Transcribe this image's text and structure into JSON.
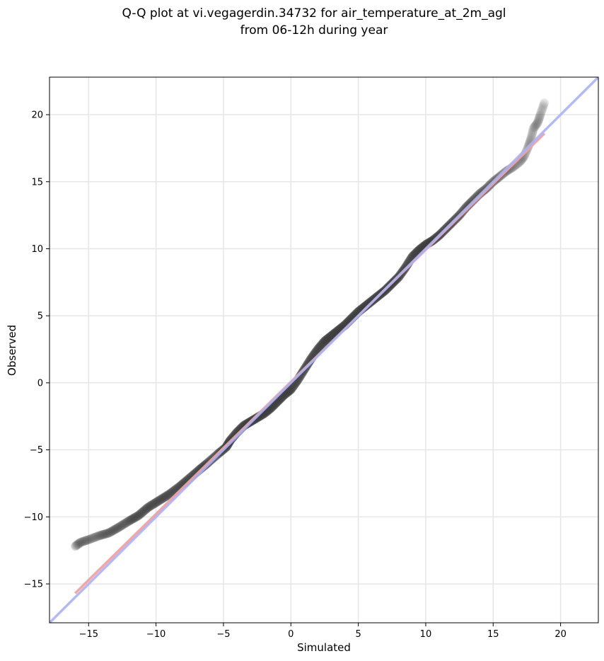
{
  "chart_data": {
    "type": "scatter",
    "title": [
      "Q-Q plot at vi.vegagerdin.34732 for air_temperature_at_2m_agl",
      "from 06-12h during year"
    ],
    "xlabel": "Simulated",
    "ylabel": "Observed",
    "xlim": [
      -17.9,
      22.8
    ],
    "ylim": [
      -17.9,
      22.8
    ],
    "xticks": [
      -15,
      -10,
      -5,
      0,
      5,
      10,
      15,
      20
    ],
    "yticks": [
      -15,
      -10,
      -5,
      0,
      5,
      10,
      15,
      20
    ],
    "xtick_labels": [
      "−15",
      "−10",
      "−5",
      "0",
      "5",
      "10",
      "15",
      "20"
    ],
    "ytick_labels": [
      "−15",
      "−10",
      "−5",
      "0",
      "5",
      "10",
      "15",
      "20"
    ],
    "grid": true,
    "quantile_curve": [
      [
        -16.0,
        -12.2
      ],
      [
        -15.6,
        -11.9
      ],
      [
        -15.0,
        -11.7
      ],
      [
        -14.2,
        -11.4
      ],
      [
        -13.5,
        -11.2
      ],
      [
        -12.8,
        -10.8
      ],
      [
        -12.0,
        -10.3
      ],
      [
        -11.3,
        -9.9
      ],
      [
        -10.6,
        -9.3
      ],
      [
        -9.8,
        -8.8
      ],
      [
        -9.0,
        -8.3
      ],
      [
        -8.2,
        -7.7
      ],
      [
        -7.5,
        -7.1
      ],
      [
        -6.8,
        -6.5
      ],
      [
        -6.2,
        -6.0
      ],
      [
        -5.4,
        -5.3
      ],
      [
        -4.8,
        -4.8
      ],
      [
        -4.5,
        -4.3
      ],
      [
        -4.0,
        -3.7
      ],
      [
        -3.5,
        -3.2
      ],
      [
        -3.0,
        -2.9
      ],
      [
        -2.5,
        -2.6
      ],
      [
        -2.0,
        -2.3
      ],
      [
        -1.5,
        -1.9
      ],
      [
        -1.0,
        -1.4
      ],
      [
        -0.5,
        -0.9
      ],
      [
        0.0,
        -0.5
      ],
      [
        0.5,
        0.2
      ],
      [
        1.0,
        1.0
      ],
      [
        1.5,
        1.8
      ],
      [
        2.0,
        2.5
      ],
      [
        2.5,
        3.1
      ],
      [
        3.0,
        3.5
      ],
      [
        3.5,
        3.9
      ],
      [
        4.0,
        4.3
      ],
      [
        4.5,
        4.8
      ],
      [
        5.0,
        5.3
      ],
      [
        5.5,
        5.7
      ],
      [
        6.0,
        6.1
      ],
      [
        6.5,
        6.5
      ],
      [
        7.0,
        6.9
      ],
      [
        7.5,
        7.4
      ],
      [
        8.0,
        7.9
      ],
      [
        8.5,
        8.6
      ],
      [
        9.0,
        9.4
      ],
      [
        9.5,
        9.9
      ],
      [
        10.0,
        10.3
      ],
      [
        10.5,
        10.6
      ],
      [
        11.0,
        11.0
      ],
      [
        11.5,
        11.5
      ],
      [
        12.0,
        12.0
      ],
      [
        12.5,
        12.5
      ],
      [
        13.0,
        13.1
      ],
      [
        13.5,
        13.6
      ],
      [
        14.0,
        14.1
      ],
      [
        14.5,
        14.5
      ],
      [
        15.0,
        15.0
      ],
      [
        15.5,
        15.4
      ],
      [
        16.0,
        15.8
      ],
      [
        16.5,
        16.1
      ],
      [
        17.0,
        16.5
      ],
      [
        17.3,
        16.9
      ],
      [
        17.6,
        17.6
      ],
      [
        17.8,
        18.2
      ],
      [
        18.0,
        19.0
      ],
      [
        18.3,
        19.4
      ],
      [
        18.5,
        20.0
      ],
      [
        18.8,
        20.9
      ]
    ],
    "fit_line": {
      "from": [
        -16.0,
        -15.7
      ],
      "to": [
        18.8,
        18.6
      ],
      "color": "#f4a0a0"
    },
    "identity_line": {
      "from": [
        -17.9,
        -17.9
      ],
      "to": [
        22.8,
        22.8
      ],
      "color": "#a9b2f5"
    },
    "point_color": "#3a3a3a"
  }
}
